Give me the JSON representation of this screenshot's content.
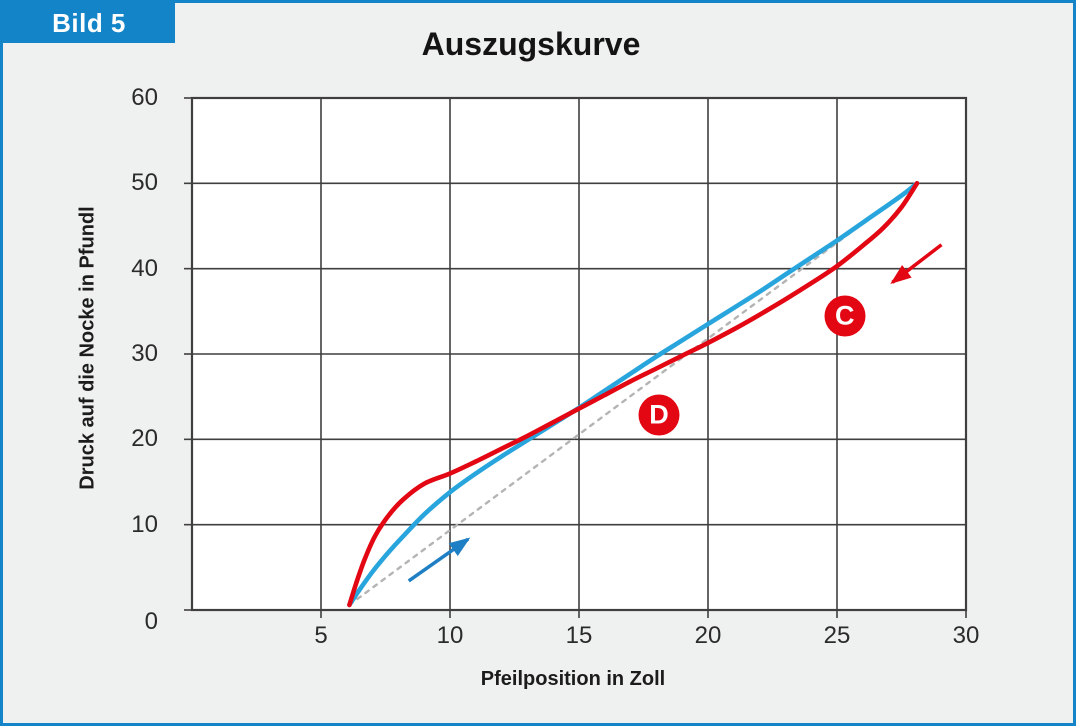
{
  "figure_label": "Bild 5",
  "chart_data": {
    "type": "line",
    "title": "Auszugskurve",
    "xlabel": "Pfeilposition in Zoll",
    "ylabel": "Druck auf die Nocke in Pfundl",
    "xlim": [
      0,
      30
    ],
    "ylim": [
      0,
      60
    ],
    "x_ticks": [
      5,
      10,
      15,
      20,
      25,
      30
    ],
    "y_ticks": [
      0,
      10,
      20,
      30,
      40,
      50,
      60
    ],
    "grid": true,
    "legend": "none",
    "colors": {
      "frame_blue": "#1484c8",
      "page_background": "#eff0f0",
      "plot_background": "#ffffff",
      "grid_line": "#3f3f3f",
      "curve_red": "#e30613",
      "curve_blue": "#29a5dd",
      "reference_gray": "#b4b4b4"
    },
    "series": [
      {
        "name": "reference-dashed",
        "color": "#b4b4b4",
        "style": "dashed",
        "width": 2.4,
        "points": [
          [
            6.1,
            0.6
          ],
          [
            28.1,
            50
          ]
        ]
      },
      {
        "name": "curve-blue",
        "color": "#29a5dd",
        "style": "solid",
        "width": 4.6,
        "points": [
          [
            6.1,
            0.6
          ],
          [
            6.5,
            2.4
          ],
          [
            7,
            4.5
          ],
          [
            7.6,
            6.7
          ],
          [
            8.2,
            8.7
          ],
          [
            9,
            11.2
          ],
          [
            10,
            13.8
          ],
          [
            11,
            16
          ],
          [
            12,
            18
          ],
          [
            13,
            19.9
          ],
          [
            14,
            21.8
          ],
          [
            15,
            23.7
          ],
          [
            16,
            25.7
          ],
          [
            17,
            27.7
          ],
          [
            18,
            29.7
          ],
          [
            19,
            31.6
          ],
          [
            20,
            33.5
          ],
          [
            21,
            35.4
          ],
          [
            22,
            37.3
          ],
          [
            23,
            39.3
          ],
          [
            24,
            41.3
          ],
          [
            25,
            43.3
          ],
          [
            26,
            45.4
          ],
          [
            27,
            47.5
          ],
          [
            27.6,
            48.8
          ],
          [
            28.1,
            50
          ]
        ]
      },
      {
        "name": "curve-red",
        "color": "#e30613",
        "style": "solid",
        "width": 4.6,
        "points": [
          [
            6.1,
            0.6
          ],
          [
            6.35,
            3
          ],
          [
            6.7,
            6
          ],
          [
            7.1,
            8.7
          ],
          [
            7.6,
            11
          ],
          [
            8.2,
            13
          ],
          [
            9,
            14.8
          ],
          [
            10,
            16
          ],
          [
            11,
            17.4
          ],
          [
            12,
            18.9
          ],
          [
            13,
            20.4
          ],
          [
            14,
            22
          ],
          [
            15,
            23.6
          ],
          [
            16,
            25.2
          ],
          [
            17,
            26.8
          ],
          [
            18,
            28.3
          ],
          [
            19,
            29.8
          ],
          [
            20,
            31.3
          ],
          [
            21,
            32.9
          ],
          [
            22,
            34.6
          ],
          [
            23,
            36.4
          ],
          [
            24,
            38.3
          ],
          [
            25,
            40.3
          ],
          [
            26,
            42.7
          ],
          [
            26.8,
            44.8
          ],
          [
            27.5,
            47.2
          ],
          [
            28.1,
            50
          ]
        ]
      }
    ],
    "annotations": {
      "badges": [
        {
          "label": "C",
          "x": 25.3,
          "y": 34.5,
          "color": "#e30613"
        },
        {
          "label": "D",
          "x": 18.1,
          "y": 22.9,
          "color": "#e30613"
        }
      ],
      "arrows": [
        {
          "name": "red-arrow",
          "color": "#e30613",
          "from": [
            29.05,
            42.8
          ],
          "to": [
            27.15,
            38.4
          ]
        },
        {
          "name": "blue-arrow",
          "color": "#1f7fc4",
          "from": [
            8.4,
            3.4
          ],
          "to": [
            10.7,
            8.3
          ]
        }
      ]
    }
  }
}
